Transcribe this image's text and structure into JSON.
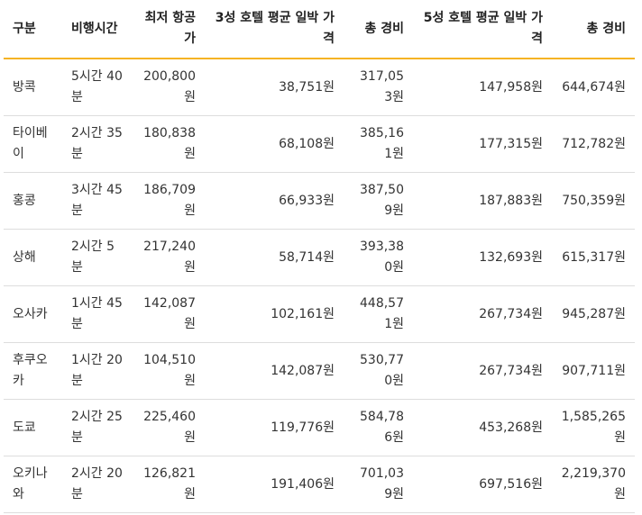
{
  "table": {
    "headers": [
      "구분",
      "비행시간",
      "최저 항공가",
      "3성 호텔 평균 일박 가격",
      "총 경비",
      "5성 호텔 평균 일박 가격",
      "총 경비"
    ],
    "rows": [
      [
        "방콕",
        "5시간 40분",
        "200,800원",
        "38,751원",
        "317,053원",
        "147,958원",
        "644,674원"
      ],
      [
        "타이베이",
        "2시간 35분",
        "180,838원",
        "68,108원",
        "385,161원",
        "177,315원",
        "712,782원"
      ],
      [
        "홍콩",
        "3시간 45분",
        "186,709원",
        "66,933원",
        "387,509원",
        "187,883원",
        "750,359원"
      ],
      [
        "상해",
        "2시간 5분",
        "217,240원",
        "58,714원",
        "393,380원",
        "132,693원",
        "615,317원"
      ],
      [
        "오사카",
        "1시간 45분",
        "142,087원",
        "102,161원",
        "448,571원",
        "267,734원",
        "945,287원"
      ],
      [
        "후쿠오카",
        "1시간 20분",
        "104,510원",
        "142,087원",
        "530,770원",
        "267,734원",
        "907,711원"
      ],
      [
        "도쿄",
        "2시간 25분",
        "225,460원",
        "119,776원",
        "584,786원",
        "453,268원",
        "1,585,265원"
      ],
      [
        "오키나와",
        "2시간 20분",
        "126,821원",
        "191,406원",
        "701,039원",
        "697,516원",
        "2,219,370원"
      ]
    ]
  }
}
